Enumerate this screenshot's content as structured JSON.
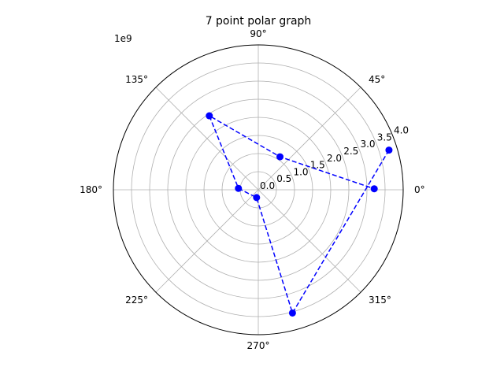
{
  "chart_data": {
    "type": "line",
    "projection": "polar",
    "title": "7 point polar graph",
    "angle_unit": "deg",
    "r_scale_label": "1e9",
    "r_max": 4.0,
    "r_ticks": [
      0.0,
      0.5,
      1.0,
      1.5,
      2.0,
      2.5,
      3.0,
      3.5,
      4.0
    ],
    "r_tick_labels": [
      "0.0",
      "0.5",
      "1.0",
      "1.5",
      "2.0",
      "2.5",
      "3.0",
      "3.5",
      "4.0"
    ],
    "r_label_angle_deg": 22.5,
    "theta_ticks_deg": [
      0,
      45,
      90,
      135,
      180,
      225,
      270,
      315
    ],
    "theta_tick_labels": [
      "0°",
      "45°",
      "90°",
      "135°",
      "180°",
      "225°",
      "270°",
      "315°"
    ],
    "grid": true,
    "line_style": "dashed",
    "marker": "circle",
    "color": "#0000ff",
    "series": [
      {
        "theta_deg": [
          16.9,
          285.5,
          257.5,
          176.0,
          123.5,
          56.7,
          0.5
        ],
        "r": [
          3.77,
          3.53,
          0.22,
          0.55,
          2.45,
          1.09,
          3.2
        ]
      }
    ]
  }
}
